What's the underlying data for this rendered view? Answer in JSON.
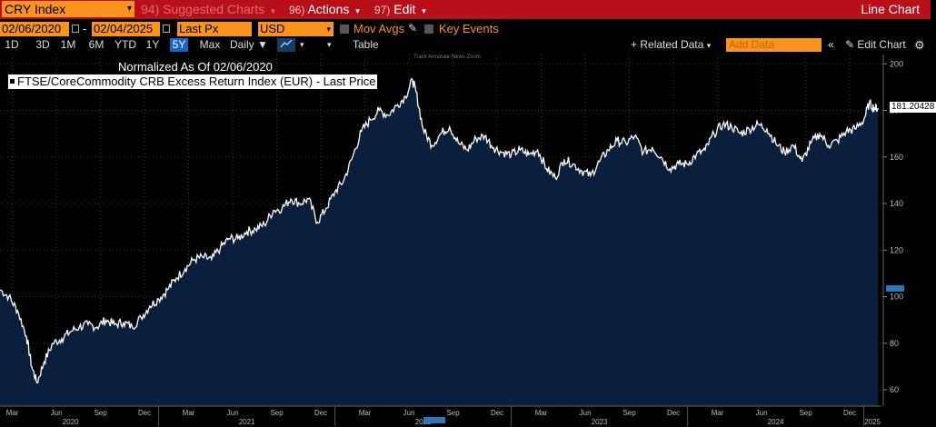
{
  "toolbar": {
    "ticker": "CRY Index",
    "suggested_num": "94)",
    "suggested_label": "Suggested Charts",
    "actions_num": "96)",
    "actions_label": "Actions",
    "edit_num": "97)",
    "edit_label": "Edit",
    "chart_type": "Line Chart"
  },
  "settings": {
    "start_date": "02/06/2020",
    "end_date": "02/04/2025",
    "field": "Last Px",
    "currency": "USD",
    "mov_avgs": "Mov Avgs",
    "key_events": "Key Events"
  },
  "ranges": [
    "1D",
    "3D",
    "1M",
    "6M",
    "YTD",
    "1Y",
    "5Y",
    "Max"
  ],
  "active_range": "5Y",
  "period": "Daily",
  "table_label": "Table",
  "related_data": "Related Data",
  "add_data_placeholder": "Add Data",
  "edit_chart": "Edit Chart",
  "chart_tools": "Track   Annotate   News   Zoom",
  "colors": {
    "topbar": "#b8101a",
    "accent": "#f7931e",
    "area": "#0a1f3c",
    "active": "#1a63c8"
  },
  "chart_data": {
    "type": "area",
    "title": "Normalized As Of 02/06/2020",
    "series_name": "FTSE/CoreCommodity CRB Excess Return Index (EUR) - Last Price",
    "last_value_label": "181.20428",
    "ylim": [
      53,
      204
    ],
    "yticks": [
      60,
      80,
      100,
      120,
      140,
      160,
      180,
      200
    ],
    "months": [
      "Mar",
      "Jun",
      "Sep",
      "Dec",
      "Mar",
      "Jun",
      "Sep",
      "Dec",
      "Mar",
      "Jun",
      "Sep",
      "Dec",
      "Mar",
      "Jun",
      "Sep",
      "Dec",
      "Mar",
      "Jun",
      "Sep",
      "Dec"
    ],
    "years": [
      "2020",
      "2021",
      "2022",
      "2023",
      "2024",
      "2025"
    ],
    "x_range": [
      2020.1,
      2025.1
    ],
    "points": [
      [
        2020.1,
        103
      ],
      [
        2020.15,
        100
      ],
      [
        2020.2,
        94
      ],
      [
        2020.25,
        83
      ],
      [
        2020.28,
        70
      ],
      [
        2020.31,
        63
      ],
      [
        2020.35,
        72
      ],
      [
        2020.4,
        80
      ],
      [
        2020.45,
        82
      ],
      [
        2020.5,
        85
      ],
      [
        2020.55,
        87
      ],
      [
        2020.6,
        88
      ],
      [
        2020.65,
        87
      ],
      [
        2020.7,
        90
      ],
      [
        2020.75,
        88
      ],
      [
        2020.8,
        89
      ],
      [
        2020.85,
        87
      ],
      [
        2020.9,
        91
      ],
      [
        2020.95,
        96
      ],
      [
        2021.0,
        99
      ],
      [
        2021.05,
        103
      ],
      [
        2021.1,
        108
      ],
      [
        2021.15,
        112
      ],
      [
        2021.2,
        116
      ],
      [
        2021.25,
        117
      ],
      [
        2021.3,
        116
      ],
      [
        2021.35,
        121
      ],
      [
        2021.4,
        125
      ],
      [
        2021.45,
        125
      ],
      [
        2021.5,
        128
      ],
      [
        2021.55,
        129
      ],
      [
        2021.6,
        131
      ],
      [
        2021.65,
        137
      ],
      [
        2021.7,
        138
      ],
      [
        2021.75,
        142
      ],
      [
        2021.8,
        140
      ],
      [
        2021.85,
        142
      ],
      [
        2021.9,
        132
      ],
      [
        2021.95,
        138
      ],
      [
        2022.0,
        145
      ],
      [
        2022.05,
        150
      ],
      [
        2022.1,
        160
      ],
      [
        2022.15,
        171
      ],
      [
        2022.2,
        176
      ],
      [
        2022.25,
        180
      ],
      [
        2022.3,
        178
      ],
      [
        2022.35,
        182
      ],
      [
        2022.4,
        186
      ],
      [
        2022.44,
        193
      ],
      [
        2022.46,
        188
      ],
      [
        2022.5,
        172
      ],
      [
        2022.55,
        165
      ],
      [
        2022.6,
        170
      ],
      [
        2022.65,
        173
      ],
      [
        2022.7,
        166
      ],
      [
        2022.75,
        163
      ],
      [
        2022.8,
        168
      ],
      [
        2022.85,
        169
      ],
      [
        2022.9,
        164
      ],
      [
        2022.95,
        162
      ],
      [
        2023.0,
        161
      ],
      [
        2023.05,
        163
      ],
      [
        2023.1,
        161
      ],
      [
        2023.15,
        163
      ],
      [
        2023.2,
        155
      ],
      [
        2023.25,
        151
      ],
      [
        2023.3,
        159
      ],
      [
        2023.35,
        157
      ],
      [
        2023.4,
        154
      ],
      [
        2023.45,
        152
      ],
      [
        2023.5,
        158
      ],
      [
        2023.55,
        163
      ],
      [
        2023.6,
        167
      ],
      [
        2023.65,
        166
      ],
      [
        2023.7,
        169
      ],
      [
        2023.75,
        162
      ],
      [
        2023.8,
        164
      ],
      [
        2023.85,
        160
      ],
      [
        2023.9,
        155
      ],
      [
        2023.95,
        157
      ],
      [
        2024.0,
        157
      ],
      [
        2024.05,
        161
      ],
      [
        2024.1,
        163
      ],
      [
        2024.15,
        170
      ],
      [
        2024.2,
        174
      ],
      [
        2024.25,
        173
      ],
      [
        2024.3,
        170
      ],
      [
        2024.35,
        172
      ],
      [
        2024.4,
        174
      ],
      [
        2024.45,
        172
      ],
      [
        2024.5,
        166
      ],
      [
        2024.55,
        162
      ],
      [
        2024.6,
        165
      ],
      [
        2024.65,
        158
      ],
      [
        2024.7,
        166
      ],
      [
        2024.75,
        170
      ],
      [
        2024.8,
        165
      ],
      [
        2024.85,
        167
      ],
      [
        2024.9,
        171
      ],
      [
        2024.95,
        172
      ],
      [
        2025.0,
        176
      ],
      [
        2025.03,
        183
      ],
      [
        2025.06,
        181
      ],
      [
        2025.08,
        181
      ]
    ]
  }
}
